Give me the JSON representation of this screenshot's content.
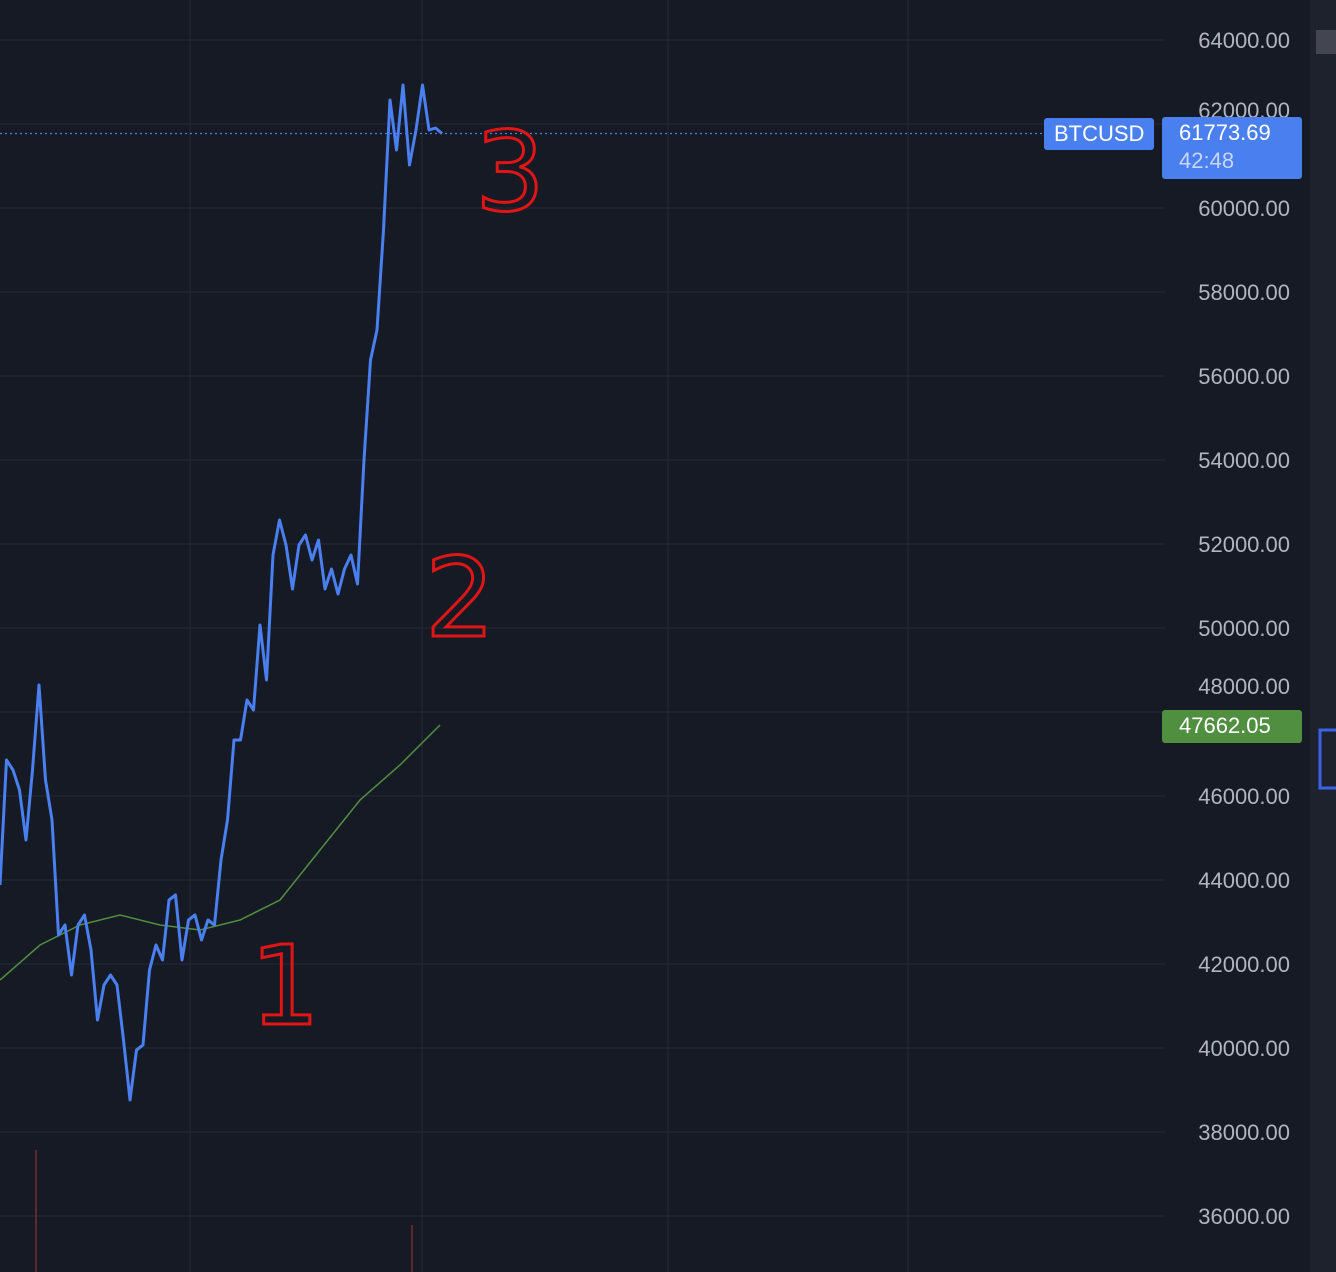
{
  "chart_data": {
    "type": "line",
    "title": "",
    "xlabel": "",
    "ylabel": "",
    "symbol": "BTCUSD",
    "ylim": [
      35000,
      65000
    ],
    "y_ticks": [
      "64000.00",
      "62000.00",
      "60000.00",
      "58000.00",
      "56000.00",
      "54000.00",
      "52000.00",
      "50000.00",
      "48000.00",
      "46000.00",
      "44000.00",
      "42000.00",
      "40000.00",
      "38000.00",
      "36000.00"
    ],
    "grid": true,
    "series": [
      {
        "kind": "price",
        "color": "#4a7ff0",
        "values": [
          43881,
          46857,
          46619,
          46143,
          44952,
          46619,
          48643,
          46381,
          45429,
          42690,
          42929,
          41738,
          42929,
          43167,
          42333,
          40667,
          41500,
          41738,
          41500,
          40190,
          38762,
          39952,
          40071,
          41857,
          42452,
          42095,
          43524,
          43643,
          42095,
          43048,
          43167,
          42571,
          43048,
          42929,
          44476,
          45429,
          47333,
          47333,
          48286,
          48048,
          50071,
          48762,
          51738,
          52571,
          51976,
          50929,
          51976,
          52214,
          51619,
          52095,
          50929,
          51405,
          50810,
          51405,
          51738,
          51048,
          54000,
          56381,
          57095,
          59476,
          62571,
          61381,
          62929,
          61024,
          61857,
          62929,
          61857,
          61905,
          61774
        ]
      },
      {
        "kind": "moving-average",
        "color": "#4f8f3f",
        "values": [
          41619,
          42452,
          42929,
          43167,
          42929,
          42810,
          43048,
          43524,
          44714,
          45905,
          46738,
          47690
        ]
      }
    ],
    "last_price": {
      "label": "BTCUSD",
      "value": "61773.69",
      "countdown": "42:48",
      "color": "#4a7ff0"
    },
    "ma_value": {
      "value": "47662.05",
      "color": "#4f8f3f"
    },
    "annotations": [
      {
        "text": "1",
        "color": "#e01515"
      },
      {
        "text": "2",
        "color": "#e01515"
      },
      {
        "text": "3",
        "color": "#e01515"
      }
    ]
  }
}
